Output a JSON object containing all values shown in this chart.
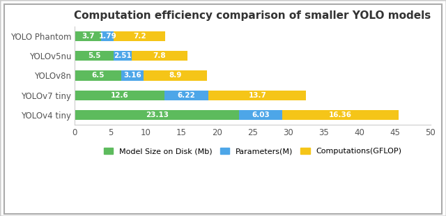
{
  "title": "Computation efficiency comparison of smaller YOLO models",
  "models": [
    "YOLOv4 tiny",
    "YOLOv7 tiny",
    "YOLOv8n",
    "YOLOv5nu",
    "YOLO Phantom"
  ],
  "model_size": [
    23.13,
    12.6,
    6.5,
    5.5,
    3.7
  ],
  "parameters": [
    6.03,
    6.22,
    3.16,
    2.51,
    1.79
  ],
  "computations": [
    16.36,
    13.7,
    8.9,
    7.8,
    7.2
  ],
  "color_size": "#5DBB5D",
  "color_params": "#4DA6E8",
  "color_comp": "#F5C518",
  "legend_labels": [
    "Model Size on Disk (Mb)",
    "Parameters(M)",
    "Computations(GFLOP)"
  ],
  "xlim": [
    0,
    50
  ],
  "xticks": [
    0,
    5,
    10,
    15,
    20,
    25,
    30,
    35,
    40,
    45,
    50
  ],
  "bar_height": 0.5,
  "figsize": [
    6.4,
    3.1
  ],
  "dpi": 100,
  "title_fontsize": 11,
  "label_fontsize": 7.5,
  "tick_fontsize": 8.5,
  "legend_fontsize": 8,
  "bg_color": "#ffffff",
  "border_color": "#cccccc"
}
